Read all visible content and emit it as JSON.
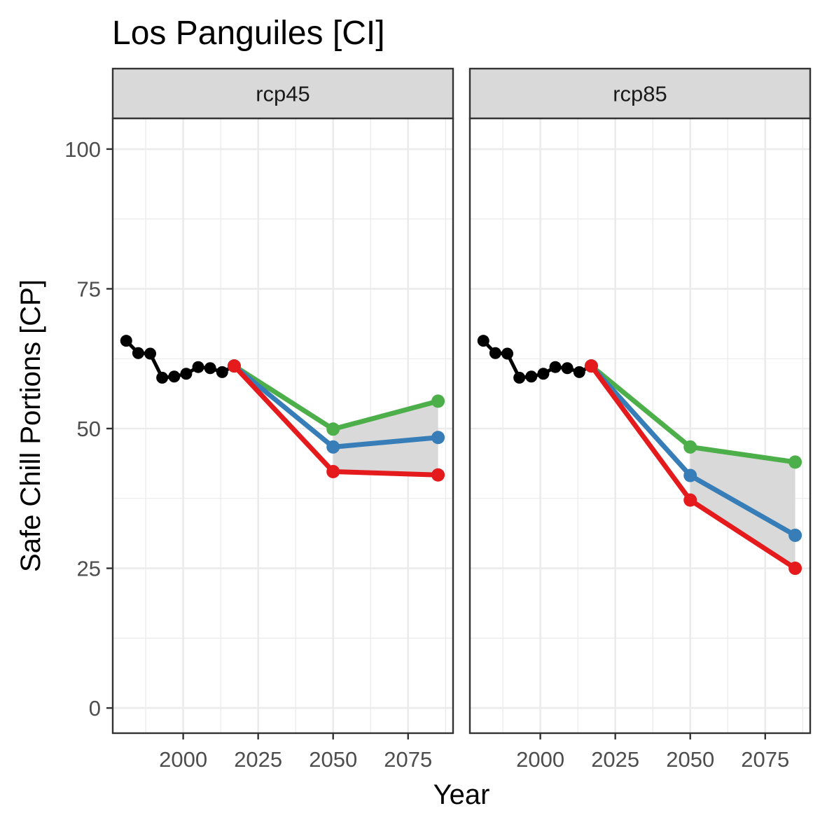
{
  "chart_data": {
    "type": "line",
    "title": "Los Panguiles [CI]",
    "xlabel": "Year",
    "ylabel": "Safe Chill Portions [CP]",
    "xlim": [
      1976.5,
      2090
    ],
    "ylim": [
      -4.5,
      105.5
    ],
    "x_ticks": [
      2000,
      2025,
      2050,
      2075
    ],
    "y_ticks": [
      0,
      25,
      50,
      75,
      100
    ],
    "grid": true,
    "legend": "none",
    "colors": {
      "historic": "#000000",
      "optimistic": "#4daf4a",
      "intermediate": "#377eb8",
      "pessimistic": "#e41a1c",
      "band": "#d9d9d9"
    },
    "panels": [
      {
        "strip": "rcp45",
        "historic": {
          "x": [
            1981,
            1985,
            1989,
            1993,
            1997,
            2001,
            2005,
            2009,
            2013,
            2017
          ],
          "y": [
            65.7,
            63.5,
            63.4,
            59.1,
            59.3,
            59.8,
            61.0,
            60.8,
            60.1,
            61.2
          ]
        },
        "scenarios": [
          {
            "key": "optimistic",
            "x": [
              2017,
              2050,
              2085
            ],
            "y": [
              61.2,
              49.9,
              54.9
            ]
          },
          {
            "key": "intermediate",
            "x": [
              2017,
              2050,
              2085
            ],
            "y": [
              61.2,
              46.7,
              48.4
            ]
          },
          {
            "key": "pessimistic",
            "x": [
              2017,
              2050,
              2085
            ],
            "y": [
              61.2,
              42.3,
              41.7
            ]
          }
        ]
      },
      {
        "strip": "rcp85",
        "historic": {
          "x": [
            1981,
            1985,
            1989,
            1993,
            1997,
            2001,
            2005,
            2009,
            2013,
            2017
          ],
          "y": [
            65.7,
            63.5,
            63.4,
            59.1,
            59.3,
            59.8,
            61.0,
            60.8,
            60.1,
            61.2
          ]
        },
        "scenarios": [
          {
            "key": "optimistic",
            "x": [
              2017,
              2050,
              2085
            ],
            "y": [
              61.2,
              46.7,
              44.0
            ]
          },
          {
            "key": "intermediate",
            "x": [
              2017,
              2050,
              2085
            ],
            "y": [
              61.2,
              41.6,
              30.9
            ]
          },
          {
            "key": "pessimistic",
            "x": [
              2017,
              2050,
              2085
            ],
            "y": [
              61.2,
              37.2,
              25.0
            ]
          }
        ]
      }
    ]
  }
}
